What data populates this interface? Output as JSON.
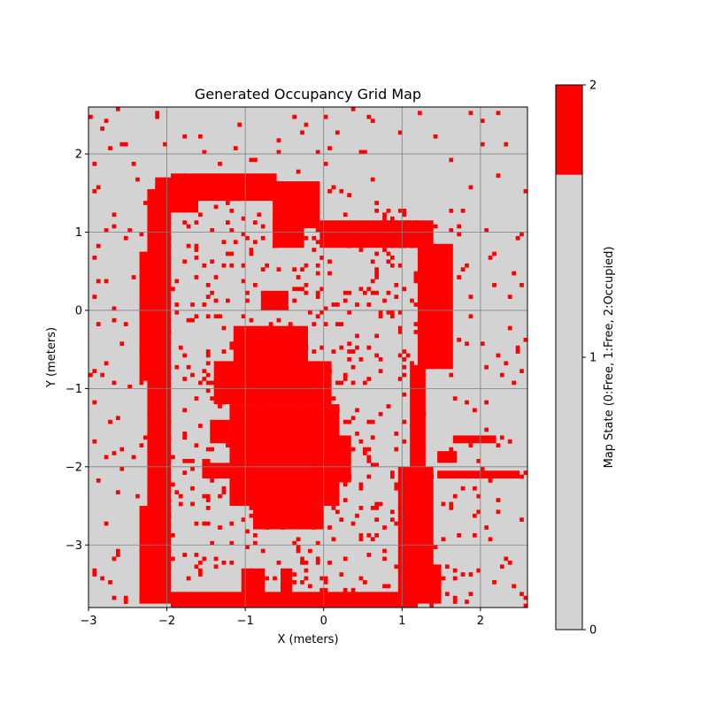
{
  "chart_data": {
    "type": "heatmap",
    "title": "Generated Occupancy Grid Map",
    "xlabel": "X (meters)",
    "ylabel": "Y (meters)",
    "xlim": [
      -3.0,
      2.6
    ],
    "ylim": [
      -3.8,
      2.6
    ],
    "xticks": [
      -3,
      -2,
      -1,
      0,
      1,
      2
    ],
    "yticks": [
      -3,
      -2,
      -1,
      0,
      1,
      2
    ],
    "xtick_labels": [
      "−3",
      "−2",
      "−1",
      "0",
      "1",
      "2"
    ],
    "ytick_labels": [
      "−3",
      "−2",
      "−1",
      "0",
      "1",
      "2"
    ],
    "grid": true,
    "cell_size_m": 0.05,
    "colors": {
      "free": "#d3d3d3",
      "occupied": "#ff0000",
      "grid": "#808080"
    },
    "colorbar": {
      "label": "Map State (0:Free, 1:Free, 2:Occupied)",
      "ticks": [
        0,
        1,
        2
      ],
      "tick_labels": [
        "0",
        "1",
        "2"
      ],
      "range": [
        0,
        2
      ],
      "segments": [
        {
          "from": 0,
          "to": 1.67,
          "color": "#d3d3d3"
        },
        {
          "from": 1.67,
          "to": 2,
          "color": "#ff0000"
        }
      ]
    },
    "occupied_rects": [
      [
        -2.25,
        -3.75,
        -1.95,
        1.55
      ],
      [
        -2.35,
        -3.75,
        -2.2,
        -2.5
      ],
      [
        -2.35,
        -0.9,
        -2.2,
        0.75
      ],
      [
        -2.15,
        1.25,
        -1.6,
        1.7
      ],
      [
        -1.95,
        1.4,
        -0.6,
        1.75
      ],
      [
        -0.65,
        1.05,
        -0.05,
        1.65
      ],
      [
        -0.65,
        0.8,
        -0.25,
        1.2
      ],
      [
        -0.05,
        0.8,
        1.4,
        1.15
      ],
      [
        1.2,
        -0.75,
        1.65,
        0.85
      ],
      [
        1.1,
        -2.0,
        1.3,
        -0.7
      ],
      [
        0.95,
        -3.75,
        1.4,
        -2.0
      ],
      [
        1.35,
        -3.75,
        1.5,
        -3.25
      ],
      [
        -1.95,
        -3.8,
        1.2,
        -3.6
      ],
      [
        -1.15,
        -0.7,
        -0.2,
        -0.2
      ],
      [
        -1.4,
        -1.2,
        0.1,
        -0.65
      ],
      [
        -1.2,
        -2.5,
        0.2,
        -1.2
      ],
      [
        -0.9,
        -2.8,
        0.0,
        -2.45
      ],
      [
        -0.8,
        0.0,
        -0.45,
        0.25
      ],
      [
        -1.55,
        -2.15,
        -1.15,
        -1.95
      ],
      [
        -1.45,
        -1.7,
        -1.2,
        -1.4
      ],
      [
        0.1,
        -2.2,
        0.35,
        -1.6
      ],
      [
        1.45,
        -1.95,
        1.7,
        -1.8
      ],
      [
        1.45,
        -2.15,
        2.5,
        -2.05
      ],
      [
        1.65,
        -1.7,
        2.2,
        -1.6
      ],
      [
        -1.05,
        -3.7,
        -0.75,
        -3.3
      ],
      [
        -0.55,
        -3.65,
        -0.4,
        -3.3
      ]
    ],
    "scatter_seed": 7,
    "scatter_density": 0.09
  }
}
